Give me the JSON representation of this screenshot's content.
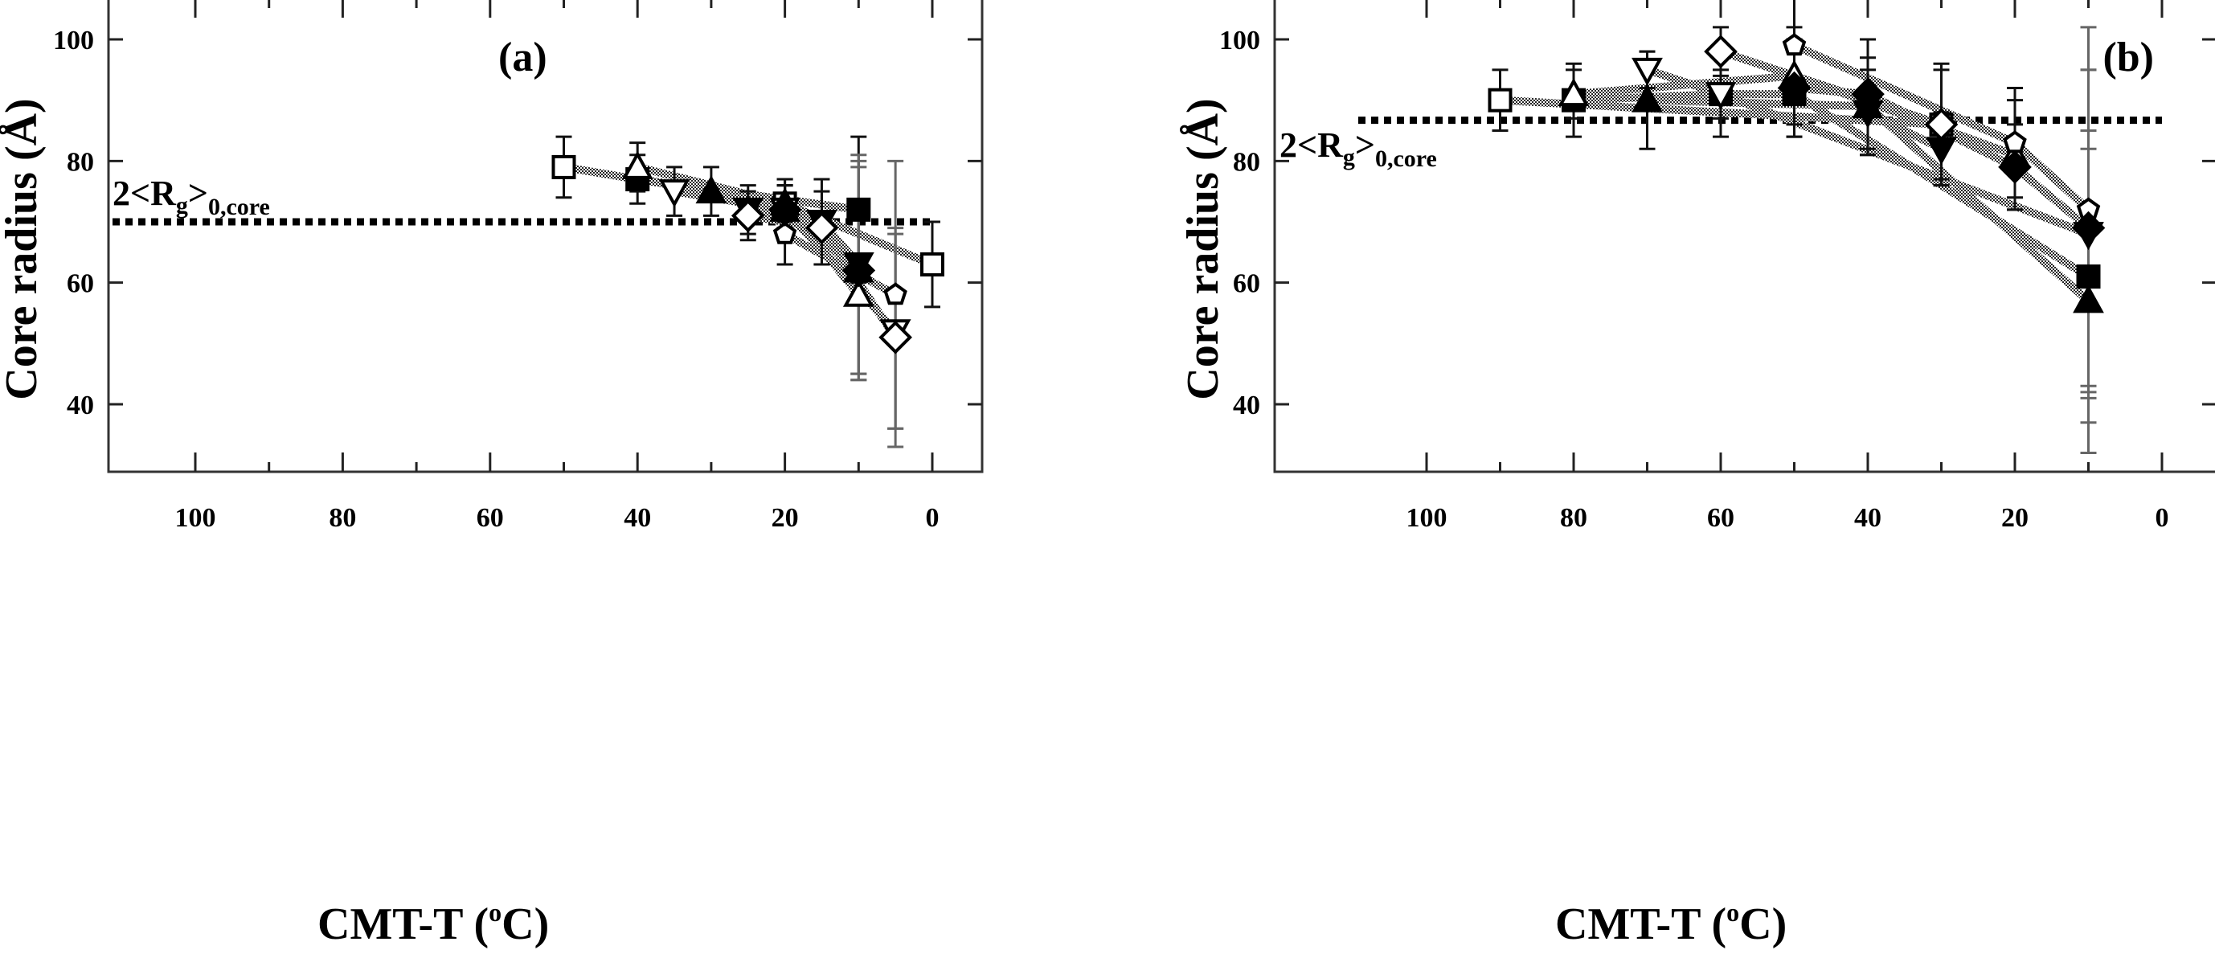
{
  "chart_data": [
    {
      "type": "scatter",
      "panel_label": "(a)",
      "xlabel": "CMT-T (",
      "xlabel_sup": "o",
      "xlabel_end": "C)",
      "ylabel": "Core radius (Å)",
      "xlim": [
        107,
        -7
      ],
      "ylim": [
        29,
        106
      ],
      "x_ticks": [
        "100",
        "80",
        "60",
        "40",
        "20",
        "0"
      ],
      "x_tick_values": [
        100,
        80,
        60,
        40,
        20,
        0
      ],
      "y_ticks": [
        "40",
        "60",
        "80",
        "100"
      ],
      "y_tick_values": [
        40,
        60,
        80,
        100
      ],
      "reference_line": {
        "value": 70,
        "label": "2<R",
        "label_sub1": "g",
        "label_mid": ">",
        "label_sub2": "0,core",
        "style": "dotted"
      },
      "series": [
        {
          "name": "open-square",
          "marker": "square",
          "filled": false,
          "points": [
            {
              "x": 50,
              "y": 79,
              "err": 5
            },
            {
              "x": 20,
              "y": 73,
              "err": 4
            },
            {
              "x": 0,
              "y": 63,
              "err": 7
            }
          ]
        },
        {
          "name": "filled-square",
          "marker": "square",
          "filled": true,
          "points": [
            {
              "x": 40,
              "y": 77,
              "err": 4
            },
            {
              "x": 10,
              "y": 72,
              "err": 12
            }
          ]
        },
        {
          "name": "open-triangle-up",
          "marker": "triangle-up",
          "filled": false,
          "points": [
            {
              "x": 40,
              "y": 79,
              "err": 4
            },
            {
              "x": 20,
              "y": 73,
              "err": 3
            },
            {
              "x": 10,
              "y": 58,
              "err": 14
            }
          ]
        },
        {
          "name": "open-triangle-down",
          "marker": "triangle-down",
          "filled": false,
          "points": [
            {
              "x": 35,
              "y": 75,
              "err": 4
            },
            {
              "x": 20,
              "y": 72,
              "err": 4
            },
            {
              "x": 5,
              "y": 52,
              "err": 16
            }
          ]
        },
        {
          "name": "filled-triangle-up",
          "marker": "triangle-up",
          "filled": true,
          "points": [
            {
              "x": 30,
              "y": 75,
              "err": 4
            },
            {
              "x": 20,
              "y": 72,
              "err": 5
            },
            {
              "x": 10,
              "y": 62,
              "err": 18
            }
          ]
        },
        {
          "name": "filled-triangle-down",
          "marker": "triangle-down",
          "filled": true,
          "points": [
            {
              "x": 25,
              "y": 72,
              "err": 4
            },
            {
              "x": 15,
              "y": 70,
              "err": 7
            },
            {
              "x": 10,
              "y": 63,
              "err": 18
            }
          ]
        },
        {
          "name": "open-diamond",
          "marker": "diamond",
          "filled": false,
          "points": [
            {
              "x": 25,
              "y": 71,
              "err": 4
            },
            {
              "x": 15,
              "y": 69,
              "err": 6
            },
            {
              "x": 5,
              "y": 51,
              "err": 18
            }
          ]
        },
        {
          "name": "open-pentagon",
          "marker": "pentagon",
          "filled": false,
          "points": [
            {
              "x": 20,
              "y": 68,
              "err": 5
            },
            {
              "x": 5,
              "y": 58,
              "err": 22
            }
          ]
        },
        {
          "name": "filled-diamond",
          "marker": "diamond",
          "filled": true,
          "points": [
            {
              "x": 20,
              "y": 72,
              "err": 4
            },
            {
              "x": 10,
              "y": 62,
              "err": 17
            }
          ]
        }
      ]
    },
    {
      "type": "scatter",
      "panel_label": "(b)",
      "xlabel": "CMT-T (",
      "xlabel_sup": "o",
      "xlabel_end": "C)",
      "ylabel": "Core radius (Å)",
      "xlim": [
        107,
        -7
      ],
      "ylim": [
        29,
        106
      ],
      "x_ticks": [
        "100",
        "80",
        "60",
        "40",
        "20",
        "0"
      ],
      "x_tick_values": [
        100,
        80,
        60,
        40,
        20,
        0
      ],
      "y_ticks": [
        "40",
        "60",
        "80",
        "100"
      ],
      "y_tick_values": [
        40,
        60,
        80,
        100
      ],
      "reference_line": {
        "value": 86.7,
        "label": "2<R",
        "label_sub1": "g",
        "label_mid": ">",
        "label_sub2": "0,core",
        "style": "dotted"
      },
      "series": [
        {
          "name": "open-square",
          "marker": "square",
          "filled": false,
          "points": [
            {
              "x": 90,
              "y": 90,
              "err": 5
            },
            {
              "x": 30,
              "y": 86,
              "err": 10
            }
          ]
        },
        {
          "name": "filled-square",
          "marker": "square",
          "filled": true,
          "points": [
            {
              "x": 80,
              "y": 90,
              "err": 6
            },
            {
              "x": 60,
              "y": 91,
              "err": 7
            },
            {
              "x": 50,
              "y": 91,
              "err": 7
            },
            {
              "x": 10,
              "y": 61,
              "err": 24
            }
          ]
        },
        {
          "name": "open-triangle-up",
          "marker": "triangle-up",
          "filled": false,
          "points": [
            {
              "x": 80,
              "y": 91,
              "err": 4
            },
            {
              "x": 50,
              "y": 94,
              "err": 8
            },
            {
              "x": 20,
              "y": 81,
              "err": 9
            }
          ]
        },
        {
          "name": "open-triangle-down",
          "marker": "triangle-down",
          "filled": false,
          "points": [
            {
              "x": 70,
              "y": 95,
              "err": 3
            },
            {
              "x": 60,
              "y": 91,
              "err": 4
            },
            {
              "x": 10,
              "y": 68,
              "err": 27
            }
          ]
        },
        {
          "name": "filled-triangle-up",
          "marker": "triangle-up",
          "filled": true,
          "points": [
            {
              "x": 70,
              "y": 90,
              "err": 8
            },
            {
              "x": 40,
              "y": 89,
              "err": 8
            },
            {
              "x": 10,
              "y": 57,
              "err": 25
            }
          ]
        },
        {
          "name": "filled-triangle-down",
          "marker": "triangle-down",
          "filled": true,
          "points": [
            {
              "x": 40,
              "y": 88,
              "err": 7
            },
            {
              "x": 30,
              "y": 82,
              "err": 6
            }
          ]
        },
        {
          "name": "open-diamond",
          "marker": "diamond",
          "filled": false,
          "points": [
            {
              "x": 60,
              "y": 98,
              "err": 4
            },
            {
              "x": 30,
              "y": 86,
              "err": 9
            }
          ]
        },
        {
          "name": "open-pentagon",
          "marker": "pentagon",
          "filled": false,
          "points": [
            {
              "x": 50,
              "y": 99,
              "err": 9
            },
            {
              "x": 20,
              "y": 83,
              "err": 9
            },
            {
              "x": 10,
              "y": 72,
              "err": 30
            }
          ]
        },
        {
          "name": "filled-diamond",
          "marker": "diamond",
          "filled": true,
          "points": [
            {
              "x": 50,
              "y": 92,
              "err": 8
            },
            {
              "x": 40,
              "y": 91,
              "err": 9
            },
            {
              "x": 20,
              "y": 79,
              "err": 7
            },
            {
              "x": 10,
              "y": 69,
              "err": 26
            }
          ]
        }
      ]
    }
  ]
}
